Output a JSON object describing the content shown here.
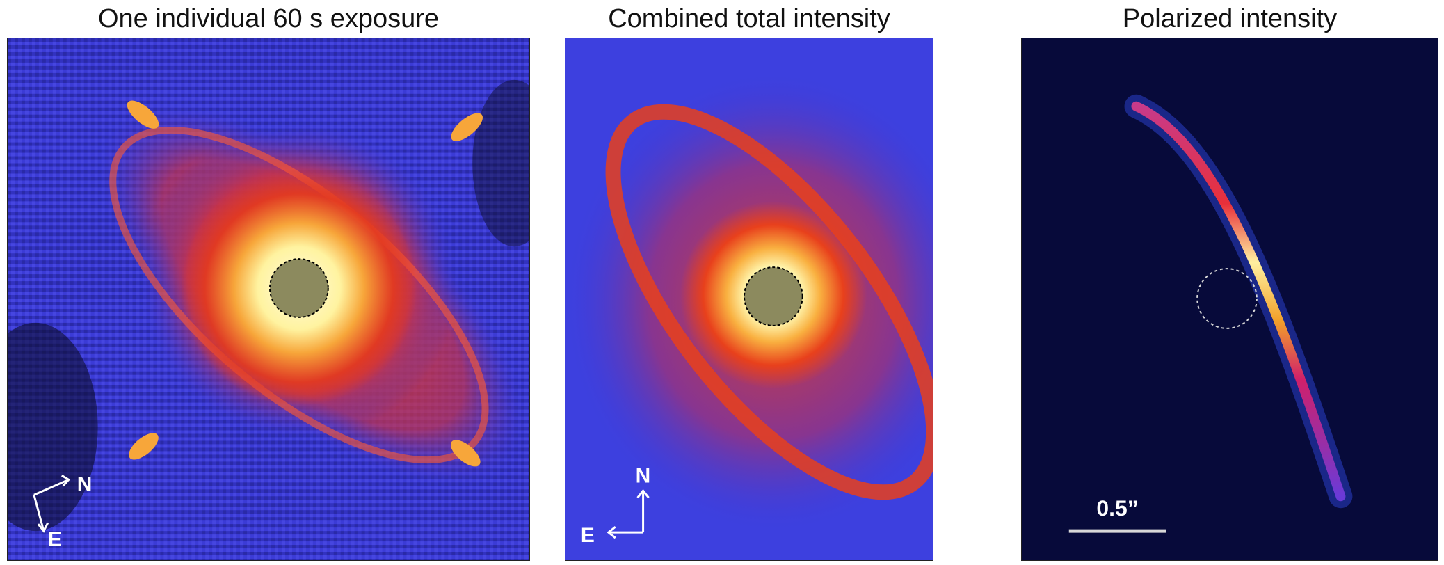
{
  "panels": [
    {
      "title": "One individual 60 s exposure",
      "compass": {
        "north": "N",
        "east": "E"
      }
    },
    {
      "title": "Combined total intensity",
      "compass": {
        "north": "N",
        "east": "E"
      }
    },
    {
      "title": "Polarized intensity",
      "scale_bar": {
        "label": "0.5”"
      }
    }
  ],
  "colors": {
    "background_blue": "#3a3ad8",
    "halo_red": "#e33a1f",
    "core_yellow": "#fff6a8",
    "mask_gray": "#8c8a5e",
    "polarized_bg": "#070a3a",
    "arc_magenta": "#d0206a"
  }
}
